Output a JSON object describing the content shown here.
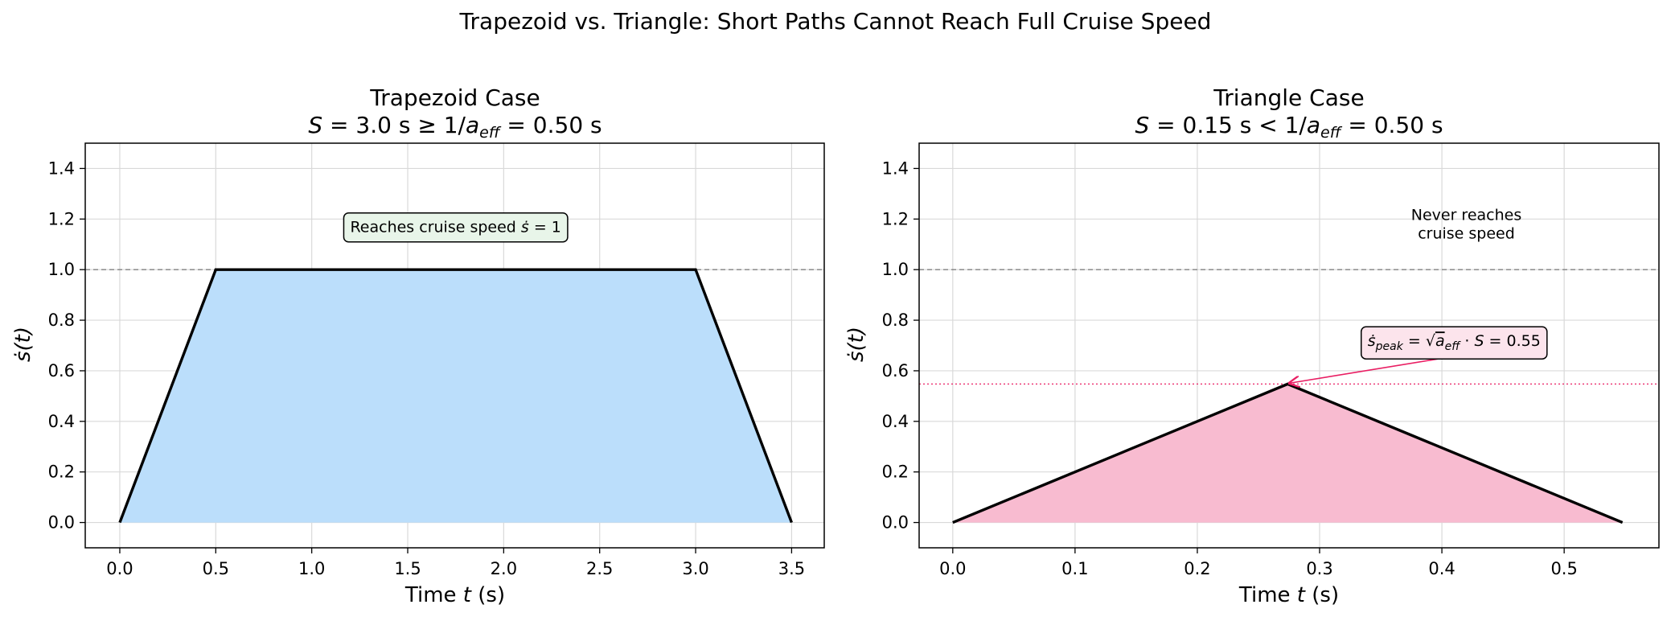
{
  "figure": {
    "title": "Trapezoid vs. Triangle: Short Paths Cannot Reach Full Cruise Speed"
  },
  "colors": {
    "trapezoid_fill": "#bbdefb",
    "triangle_fill": "#f8bbd0",
    "line": "#000000",
    "peak_accent": "#e91e63",
    "cruise_ref": "#808080",
    "green_box": "#e8f5e9",
    "pink_box": "#fce4ec",
    "grey_note": "#808080"
  },
  "chart_data": [
    {
      "type": "area",
      "title_line1": "Trapezoid Case",
      "title_line2": "S = 3.0 s ≥ 1/a_eff = 0.50 s",
      "xlabel": "Time t (s)",
      "ylabel": "ṡ(t)",
      "xlim": [
        -0.18,
        3.67
      ],
      "ylim": [
        -0.1,
        1.5
      ],
      "xticks": [
        0.0,
        0.5,
        1.0,
        1.5,
        2.0,
        2.5,
        3.0,
        3.5
      ],
      "yticks": [
        0.0,
        0.2,
        0.4,
        0.6,
        0.8,
        1.0,
        1.2,
        1.4
      ],
      "grid": true,
      "reference_line": {
        "y": 1.0,
        "style": "dashed"
      },
      "series": [
        {
          "x": [
            0.0,
            0.5,
            3.0,
            3.5
          ],
          "y": [
            0.0,
            1.0,
            1.0,
            0.0
          ]
        }
      ],
      "annotation": {
        "text": "Reaches cruise speed ṡ = 1",
        "x": 1.75,
        "y": 1.17
      }
    },
    {
      "type": "area",
      "title_line1": "Triangle Case",
      "title_line2": "S = 0.15 s < 1/a_eff = 0.50 s",
      "xlabel": "Time t (s)",
      "ylabel": "ṡ(t)",
      "xlim": [
        -0.0275,
        0.5775
      ],
      "ylim": [
        -0.1,
        1.5
      ],
      "xticks": [
        0.0,
        0.1,
        0.2,
        0.3,
        0.4,
        0.5
      ],
      "yticks": [
        0.0,
        0.2,
        0.4,
        0.6,
        0.8,
        1.0,
        1.2,
        1.4
      ],
      "grid": true,
      "reference_line": {
        "y": 1.0,
        "style": "dashed"
      },
      "peak_line": {
        "y": 0.5477,
        "style": "dotted"
      },
      "series": [
        {
          "x": [
            0.0,
            0.2739,
            0.5477
          ],
          "y": [
            0.0,
            0.5477,
            0.0
          ]
        }
      ],
      "annotation": {
        "text": "ṡ_peak = √(a_eff · S) = 0.55",
        "x": 0.41,
        "y": 0.72,
        "arrow_to": [
          0.2739,
          0.5477
        ]
      },
      "note": {
        "line1": "Never reaches",
        "line2": "cruise speed",
        "x": 0.42,
        "y": 1.2
      }
    }
  ]
}
